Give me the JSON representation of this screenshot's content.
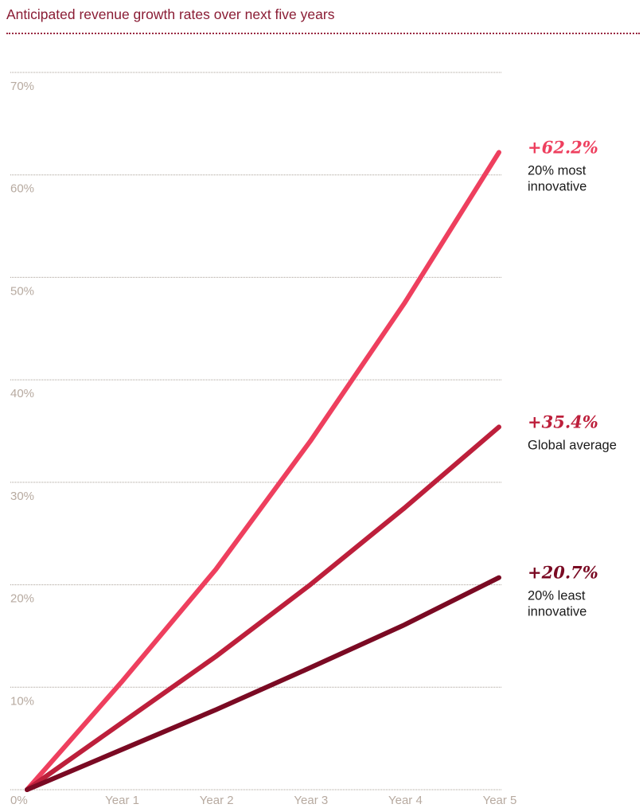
{
  "chart_data": {
    "type": "line",
    "title": "Anticipated revenue growth rates over next five years",
    "x": [
      "0%",
      "Year 1",
      "Year 2",
      "Year 3",
      "Year 4",
      "Year 5"
    ],
    "y_ticks": [
      "10%",
      "20%",
      "30%",
      "40%",
      "50%",
      "60%",
      "70%"
    ],
    "ylim": [
      0,
      70
    ],
    "grid": true,
    "legend": "end-of-line labels",
    "series": [
      {
        "key": "top",
        "name": "20% most innovative",
        "end_value": "+62.2%",
        "color": "#ee3f5e",
        "values": [
          0,
          10.5,
          21.5,
          34.0,
          47.5,
          62.2
        ]
      },
      {
        "key": "avg",
        "name": "Global average",
        "end_value": "+35.4%",
        "color": "#bd1f3b",
        "values": [
          0,
          6.5,
          13.0,
          20.0,
          27.5,
          35.4
        ]
      },
      {
        "key": "low",
        "name": "20% least innovative",
        "end_value": "+20.7%",
        "color": "#7a0a23",
        "values": [
          0,
          3.9,
          7.8,
          11.9,
          16.1,
          20.7
        ]
      }
    ],
    "label_lines": {
      "top": [
        "20% most",
        "innovative"
      ],
      "avg": [
        "Global average"
      ],
      "low": [
        "20% least",
        "innovative"
      ]
    }
  }
}
